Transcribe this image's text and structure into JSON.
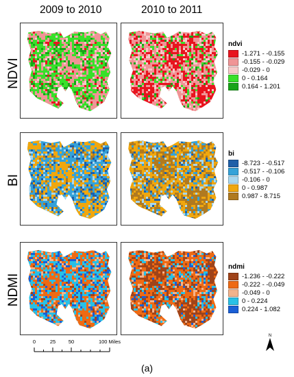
{
  "columns": [
    "2009 to 2010",
    "2010 to 2011"
  ],
  "rows": [
    {
      "label": "NDVI",
      "legend_title": "ndvi",
      "classes": [
        {
          "range": "-1.271 - -0.155",
          "color": "#e8141e"
        },
        {
          "range": "-0.155 - -0.029",
          "color": "#f09496"
        },
        {
          "range": "-0.029 - 0",
          "color": "#f6c9c9"
        },
        {
          "range": "0 - 0.164",
          "color": "#38e02a"
        },
        {
          "range": "0.164 - 1.201",
          "color": "#18a418"
        }
      ],
      "panel_colors": [
        [
          "#38e02a",
          "#f09496",
          "#18a418",
          "#f6c9c9",
          "#e8141e"
        ],
        [
          "#f09496",
          "#e8141e",
          "#f6c9c9",
          "#38e02a",
          "#18a418"
        ]
      ]
    },
    {
      "label": "BI",
      "legend_title": "bi",
      "classes": [
        {
          "range": "-8.723 - -0.517",
          "color": "#1f5fa8"
        },
        {
          "range": "-0.517 - -0.106",
          "color": "#35a2d8"
        },
        {
          "range": "-0.106 - 0",
          "color": "#a8d7ef"
        },
        {
          "range": "0 - 0.987",
          "color": "#f0a70e"
        },
        {
          "range": "0.987 - 8.715",
          "color": "#b07a20"
        }
      ],
      "panel_colors": [
        [
          "#35a2d8",
          "#f0a70e",
          "#1f5fa8",
          "#a8d7ef",
          "#b07a20"
        ],
        [
          "#f0a70e",
          "#b07a20",
          "#a8d7ef",
          "#35a2d8",
          "#1f5fa8"
        ]
      ]
    },
    {
      "label": "NDMI",
      "legend_title": "ndmi",
      "classes": [
        {
          "range": "-1.236 - -0.222",
          "color": "#a0441a"
        },
        {
          "range": "-0.222 - -0.049",
          "color": "#ee6a14"
        },
        {
          "range": "-0.049 - 0",
          "color": "#f2b38c"
        },
        {
          "range": "0 - 0.224",
          "color": "#28c0e6"
        },
        {
          "range": "0.224 - 1.082",
          "color": "#1a5fd6"
        }
      ],
      "panel_colors": [
        [
          "#28c0e6",
          "#ee6a14",
          "#1a5fd6",
          "#f2b38c",
          "#a0441a"
        ],
        [
          "#ee6a14",
          "#a0441a",
          "#28c0e6",
          "#f2b38c",
          "#1a5fd6"
        ]
      ]
    }
  ],
  "scale_bar": {
    "labels": [
      "0",
      "25",
      "50",
      "100 Miles"
    ],
    "values": [
      0,
      25,
      50,
      100
    ]
  },
  "north_arrow_label": "N",
  "caption": "(a)"
}
